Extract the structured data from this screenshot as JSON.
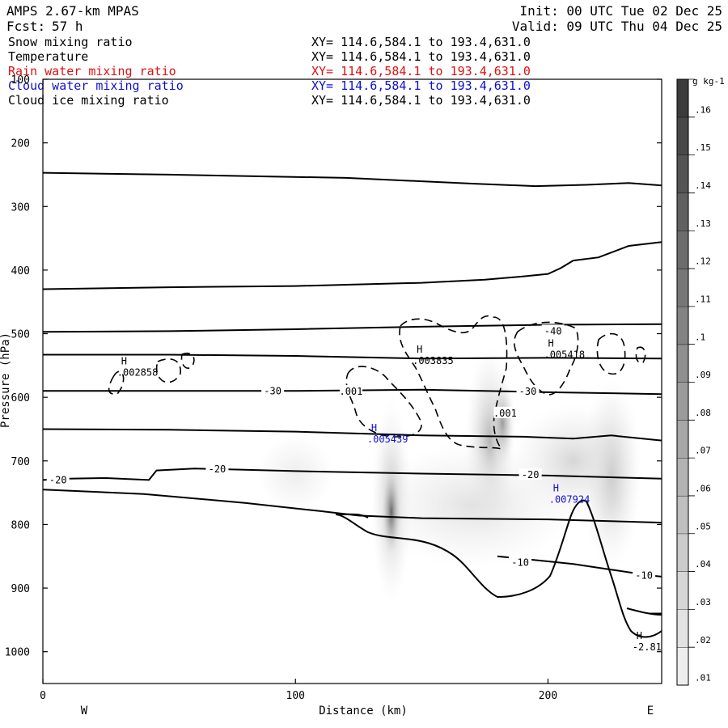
{
  "header": {
    "model": "AMPS 2.67-km MPAS",
    "fcst_label": "Fcst:",
    "fcst_value": "57 h",
    "init": "Init: 00 UTC Tue 02 Dec 25",
    "valid": "Valid: 09 UTC Thu 04 Dec 25"
  },
  "fields": [
    {
      "name": "Snow mixing ratio",
      "xy": "XY= 114.6,584.1 to 193.4,631.0",
      "color": "#000000"
    },
    {
      "name": "Temperature",
      "xy": "XY= 114.6,584.1 to 193.4,631.0",
      "color": "#000000"
    },
    {
      "name": "Rain water mixing ratio",
      "xy": "XY= 114.6,584.1 to 193.4,631.0",
      "color": "#e01010"
    },
    {
      "name": "Cloud water mixing ratio",
      "xy": "XY= 114.6,584.1 to 193.4,631.0",
      "color": "#1010d0"
    },
    {
      "name": "Cloud ice mixing ratio",
      "xy": "XY= 114.6,584.1 to 193.4,631.0",
      "color": "#000000"
    }
  ],
  "chart_data": {
    "type": "cross-section contour",
    "xlabel": "Distance (km)",
    "ylabel": "Pressure (hPa)",
    "xlim": [
      0,
      245
    ],
    "ylim": [
      1050,
      100
    ],
    "x_ticks": [
      0,
      100,
      200
    ],
    "y_ticks": [
      100,
      200,
      300,
      400,
      500,
      600,
      700,
      800,
      900,
      1000
    ],
    "west_label": "W",
    "east_label": "E",
    "colorbar": {
      "units": "g kg-1",
      "levels": [
        0.01,
        0.02,
        0.03,
        0.04,
        0.05,
        0.06,
        0.07,
        0.08,
        0.09,
        0.1,
        0.11,
        0.12,
        0.13,
        0.14,
        0.15,
        0.16
      ],
      "labels": [
        ".01",
        ".02",
        ".03",
        ".04",
        ".05",
        ".06",
        ".07",
        ".08",
        ".09",
        ".1",
        ".11",
        ".12",
        ".13",
        ".14",
        ".15",
        ".16"
      ]
    },
    "isotherms": [
      {
        "label": "",
        "points": [
          [
            0,
            247
          ],
          [
            50,
            250
          ],
          [
            120,
            255
          ],
          [
            170,
            264
          ],
          [
            195,
            268
          ],
          [
            215,
            266
          ],
          [
            232,
            263
          ],
          [
            245,
            267
          ]
        ]
      },
      {
        "label": "",
        "points": [
          [
            0,
            430
          ],
          [
            50,
            427
          ],
          [
            100,
            425
          ],
          [
            150,
            420
          ],
          [
            175,
            415
          ],
          [
            190,
            410
          ],
          [
            200,
            406
          ],
          [
            205,
            397
          ],
          [
            210,
            385
          ],
          [
            220,
            380
          ],
          [
            232,
            362
          ],
          [
            245,
            356
          ]
        ]
      },
      {
        "label": "",
        "points": [
          [
            0,
            497
          ],
          [
            50,
            496
          ],
          [
            100,
            493
          ],
          [
            150,
            489
          ],
          [
            200,
            486
          ],
          [
            245,
            485
          ]
        ]
      },
      {
        "label": "-40",
        "points": [
          [
            0,
            533
          ],
          [
            50,
            533
          ],
          [
            100,
            535
          ],
          [
            150,
            539
          ],
          [
            200,
            538
          ],
          [
            245,
            539
          ]
        ]
      },
      {
        "label": "-30",
        "points": [
          [
            0,
            590
          ],
          [
            50,
            590
          ],
          [
            100,
            590
          ],
          [
            150,
            588
          ],
          [
            200,
            592
          ],
          [
            245,
            595
          ]
        ]
      },
      {
        "label": "",
        "points": [
          [
            0,
            650
          ],
          [
            50,
            651
          ],
          [
            100,
            654
          ],
          [
            150,
            660
          ],
          [
            190,
            662
          ],
          [
            210,
            665
          ],
          [
            225,
            660
          ],
          [
            245,
            668
          ]
        ]
      },
      {
        "label": "-20",
        "points": [
          [
            0,
            730
          ],
          [
            10,
            728
          ],
          [
            25,
            727
          ],
          [
            42,
            730
          ],
          [
            45,
            715
          ],
          [
            60,
            712
          ],
          [
            100,
            716
          ],
          [
            150,
            720
          ],
          [
            200,
            723
          ],
          [
            245,
            728
          ]
        ]
      },
      {
        "label": "-20",
        "points": [
          [
            0,
            745
          ],
          [
            40,
            752
          ],
          [
            80,
            766
          ],
          [
            110,
            779
          ],
          [
            125,
            786
          ],
          [
            150,
            790
          ],
          [
            200,
            792
          ],
          [
            245,
            797
          ]
        ]
      },
      {
        "label": "-10",
        "points": [
          [
            180,
            850
          ],
          [
            200,
            858
          ],
          [
            210,
            862
          ],
          [
            225,
            871
          ],
          [
            240,
            880
          ],
          [
            245,
            882
          ]
        ]
      },
      {
        "label": "",
        "points": [
          [
            240,
            940
          ],
          [
            245,
            940
          ]
        ]
      }
    ],
    "isotherm_labels": [
      {
        "text": "-20",
        "x": 6,
        "p": 730
      },
      {
        "text": "-20",
        "x": 69,
        "p": 713
      },
      {
        "text": "-30",
        "x": 91,
        "p": 590
      },
      {
        "text": "-30",
        "x": 192,
        "p": 591
      },
      {
        "text": "-40",
        "x": 202,
        "p": 496
      },
      {
        "text": "-20",
        "x": 193,
        "p": 722
      },
      {
        "text": "-10",
        "x": 189,
        "p": 860
      },
      {
        "text": "-10",
        "x": 238,
        "p": 880
      }
    ],
    "snow_contour_label": ".001",
    "snow_contour_labels": [
      {
        "text": ".001",
        "x": 122,
        "p": 591
      },
      {
        "text": ".001",
        "x": 183,
        "p": 625
      }
    ],
    "maxima": [
      {
        "label": "H",
        "value": ".002858",
        "x": 31,
        "p": 548,
        "color": "#000000"
      },
      {
        "label": "H",
        "value": ".003835",
        "x": 148,
        "p": 530,
        "color": "#000000"
      },
      {
        "label": "H",
        "value": ".005418",
        "x": 200,
        "p": 520,
        "color": "#000000"
      },
      {
        "label": "H",
        "value": ".005439",
        "x": 130,
        "p": 653,
        "color": "#1010d0"
      },
      {
        "label": "H",
        "value": ".007924",
        "x": 202,
        "p": 748,
        "color": "#1010d0"
      },
      {
        "label": "H",
        "value": "-2.81",
        "x": 235,
        "p": 980,
        "color": "#000000"
      }
    ],
    "shading_cells": [
      {
        "x": 138,
        "p": 765,
        "rx": 8,
        "rp": 160,
        "value": 0.05
      },
      {
        "x": 138,
        "p": 780,
        "rx": 4,
        "rp": 70,
        "value": 0.15
      },
      {
        "x": 177,
        "p": 670,
        "rx": 10,
        "rp": 150,
        "value": 0.06
      },
      {
        "x": 182,
        "p": 640,
        "rx": 5,
        "rp": 70,
        "value": 0.08
      },
      {
        "x": 225,
        "p": 720,
        "rx": 12,
        "rp": 150,
        "value": 0.05
      },
      {
        "x": 210,
        "p": 700,
        "rx": 25,
        "rp": 90,
        "value": 0.03
      },
      {
        "x": 170,
        "p": 770,
        "rx": 40,
        "rp": 100,
        "value": 0.02
      },
      {
        "x": 100,
        "p": 720,
        "rx": 15,
        "rp": 60,
        "value": 0.01
      }
    ]
  }
}
